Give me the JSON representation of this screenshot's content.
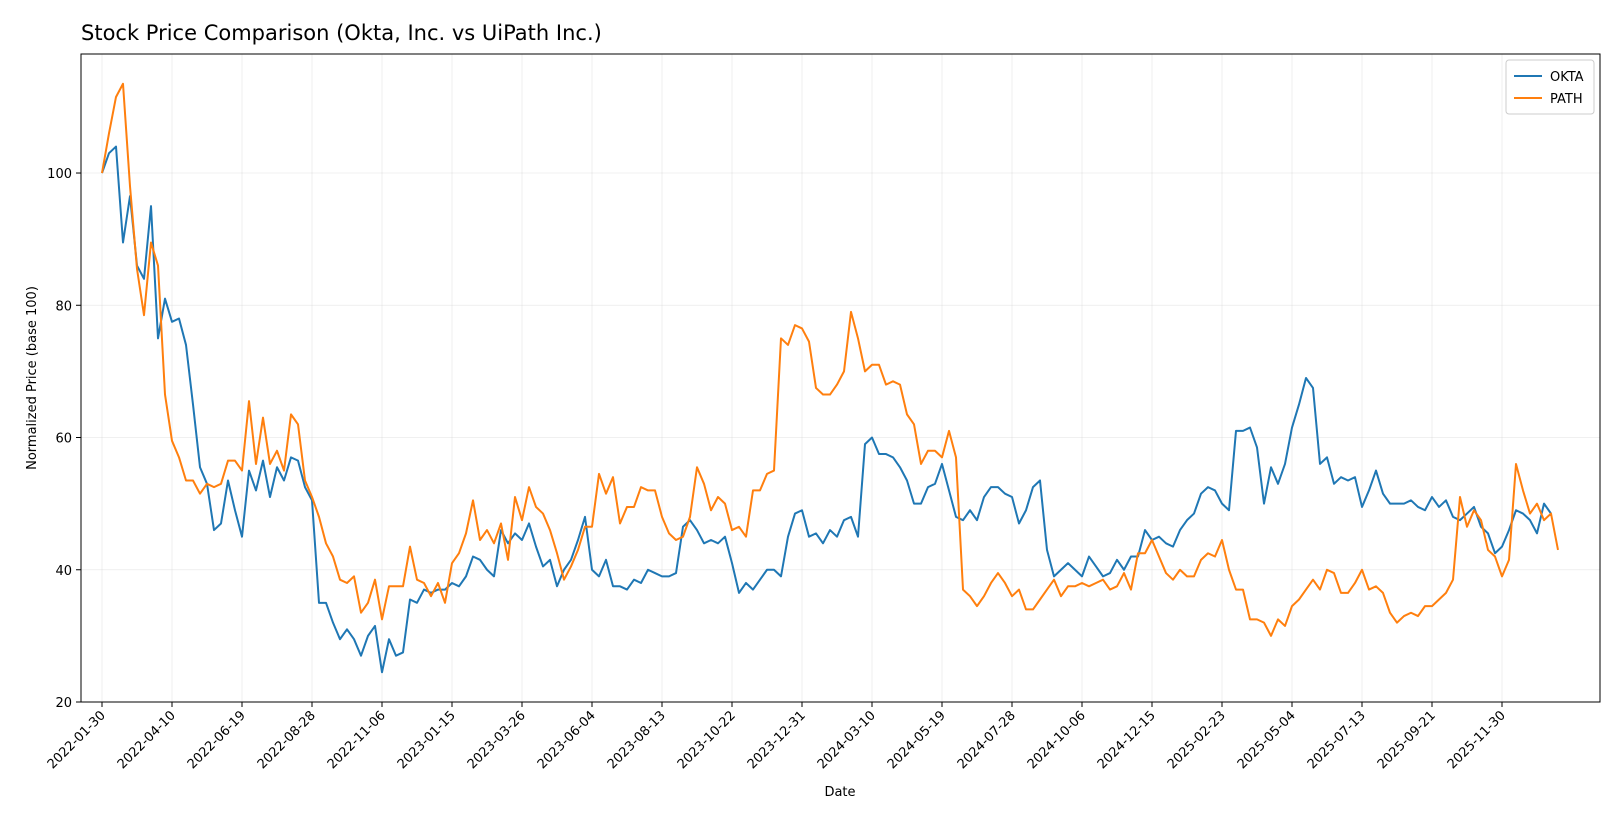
{
  "chart_data": {
    "type": "line",
    "title": "Stock Price Comparison (Okta, Inc. vs UiPath Inc.)",
    "xlabel": "Date",
    "ylabel": "Normalized Price (base 100)",
    "ylim": [
      20,
      118
    ],
    "yticks": [
      20,
      40,
      60,
      80,
      100
    ],
    "xticks": [
      "2022-01-30",
      "2022-04-10",
      "2022-06-19",
      "2022-08-28",
      "2022-11-06",
      "2023-01-15",
      "2023-03-26",
      "2023-06-04",
      "2023-08-13",
      "2023-10-22",
      "2023-12-31",
      "2024-03-10",
      "2024-05-19",
      "2024-07-28",
      "2024-10-06",
      "2024-12-15",
      "2025-02-23",
      "2025-05-04",
      "2025-07-13",
      "2025-09-21",
      "2025-11-30"
    ],
    "x_start": "2022-01-30",
    "x_step_days": 7,
    "xlim": [
      "2022-01-09",
      "2026-03-08"
    ],
    "grid": true,
    "legend_position": "top-right",
    "series": [
      {
        "name": "OKTA",
        "color": "#1f77b4",
        "values": [
          100,
          103,
          104,
          89.5,
          96.5,
          86,
          84,
          95,
          75,
          81,
          77.5,
          78,
          74,
          65,
          55.5,
          53,
          46,
          47,
          53.5,
          49,
          45,
          55,
          52,
          56.5,
          51,
          55.5,
          53.5,
          57,
          56.5,
          52.5,
          50.5,
          35,
          35,
          32,
          29.5,
          31,
          29.5,
          27,
          30,
          31.5,
          24.5,
          29.5,
          27,
          27.5,
          35.5,
          35,
          37,
          36.5,
          37,
          37,
          38,
          37.5,
          39,
          42,
          41.5,
          40,
          39,
          46,
          44,
          45.5,
          44.5,
          47,
          43.5,
          40.5,
          41.5,
          37.5,
          40,
          41.5,
          44.5,
          48,
          40,
          39,
          41.5,
          37.5,
          37.5,
          37,
          38.5,
          38,
          40,
          39.5,
          39,
          39,
          39.5,
          46.5,
          47.5,
          46,
          44,
          44.5,
          44,
          45,
          41,
          36.5,
          38,
          37,
          38.5,
          40,
          40,
          39,
          45,
          48.5,
          49,
          45,
          45.5,
          44,
          46,
          45,
          47.5,
          48,
          45,
          59,
          60,
          57.5,
          57.5,
          57,
          55.5,
          53.5,
          50,
          50,
          52.5,
          53,
          56,
          52,
          48,
          47.5,
          49,
          47.5,
          51,
          52.5,
          52.5,
          51.5,
          51,
          47,
          49,
          52.5,
          53.5,
          43,
          39,
          40,
          41,
          40,
          39,
          42,
          40.5,
          39,
          39.5,
          41.5,
          40,
          42,
          42,
          46,
          44.5,
          45,
          44,
          43.5,
          46,
          47.5,
          48.5,
          51.5,
          52.5,
          52,
          50,
          49,
          61,
          61,
          61.5,
          58.5,
          50,
          55.5,
          53,
          56,
          61.5,
          65,
          69,
          67.5,
          56,
          57,
          53,
          54,
          53.5,
          54,
          49.5,
          52,
          55,
          51.5,
          50,
          50,
          50,
          50.5,
          49.5,
          49,
          51,
          49.5,
          50.5,
          48,
          47.5,
          48.5,
          49.5,
          46.5,
          45.5,
          42.5,
          43.5,
          46,
          49,
          48.5,
          47.5,
          45.5,
          50,
          48.5
        ]
      },
      {
        "name": "PATH",
        "color": "#ff7f0e",
        "values": [
          100,
          106,
          111.5,
          113.5,
          98,
          85.5,
          78.5,
          89.5,
          86,
          66.5,
          59.5,
          57,
          53.5,
          53.5,
          51.5,
          53,
          52.5,
          53,
          56.5,
          56.5,
          55,
          65.5,
          56,
          63,
          56,
          58,
          55,
          63.5,
          62,
          53.5,
          51,
          48,
          44,
          42,
          38.5,
          38,
          39,
          33.5,
          35,
          38.5,
          32.5,
          37.5,
          37.5,
          37.5,
          43.5,
          38.5,
          38,
          36,
          38,
          35,
          41,
          42.5,
          45.5,
          50.5,
          44.5,
          46,
          44,
          47,
          41.5,
          51,
          47.5,
          52.5,
          49.5,
          48.5,
          46,
          42.5,
          38.5,
          40.5,
          43,
          46.5,
          46.5,
          54.5,
          51.5,
          54,
          47,
          49.5,
          49.5,
          52.5,
          52,
          52,
          48,
          45.5,
          44.5,
          45,
          48,
          55.5,
          53,
          49,
          51,
          50,
          46,
          46.5,
          45,
          52,
          52,
          54.5,
          55,
          75,
          74,
          77,
          76.5,
          74.5,
          67.5,
          66.5,
          66.5,
          68,
          70,
          79,
          75,
          70,
          71,
          71,
          68,
          68.5,
          68,
          63.5,
          62,
          56,
          58,
          58,
          57,
          61,
          57,
          37,
          36,
          34.5,
          36,
          38,
          39.5,
          38,
          36,
          37,
          34,
          34,
          35.5,
          37,
          38.5,
          36,
          37.5,
          37.5,
          38,
          37.5,
          38,
          38.5,
          37,
          37.5,
          39.5,
          37,
          42.5,
          42.5,
          44.5,
          42,
          39.5,
          38.5,
          40,
          39,
          39,
          41.5,
          42.5,
          42,
          44.5,
          40,
          37,
          37,
          32.5,
          32.5,
          32,
          30,
          32.5,
          31.5,
          34.5,
          35.5,
          37,
          38.5,
          37,
          40,
          39.5,
          36.5,
          36.5,
          38,
          40,
          37,
          37.5,
          36.5,
          33.5,
          32,
          33,
          33.5,
          33,
          34.5,
          34.5,
          35.5,
          36.5,
          38.5,
          51,
          46.5,
          49,
          47.5,
          43,
          42,
          39,
          41.5,
          56,
          52,
          48.5,
          50,
          47.5,
          48.5,
          43
        ]
      }
    ]
  }
}
